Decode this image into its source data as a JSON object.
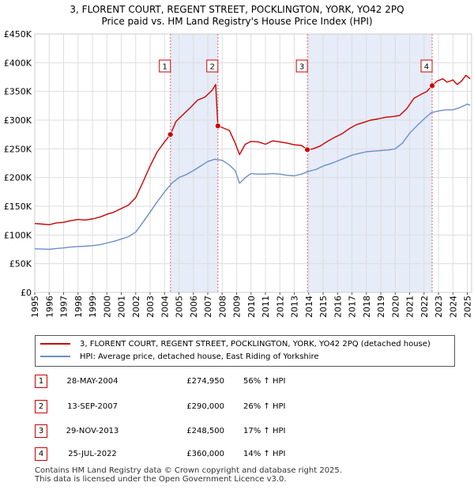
{
  "header": {
    "title": "3, FLORENT COURT, REGENT STREET, POCKLINGTON, YORK, YO42 2PQ",
    "subtitle": "Price paid vs. HM Land Registry's House Price Index (HPI)"
  },
  "chart_data": {
    "type": "line",
    "title": "3, FLORENT COURT, REGENT STREET, POCKLINGTON, YORK, YO42 2PQ",
    "subtitle": "Price paid vs. HM Land Registry's House Price Index (HPI)",
    "xlim": [
      1995,
      2025.3
    ],
    "ylim": [
      0,
      450000
    ],
    "y_ticks": [
      0,
      50000,
      100000,
      150000,
      200000,
      250000,
      300000,
      350000,
      400000,
      450000
    ],
    "y_tick_labels": [
      "£0",
      "£50K",
      "£100K",
      "£150K",
      "£200K",
      "£250K",
      "£300K",
      "£350K",
      "£400K",
      "£450K"
    ],
    "x_ticks": [
      1995,
      1996,
      1997,
      1998,
      1999,
      2000,
      2001,
      2002,
      2003,
      2004,
      2005,
      2006,
      2007,
      2008,
      2009,
      2010,
      2011,
      2012,
      2013,
      2014,
      2015,
      2016,
      2017,
      2018,
      2019,
      2020,
      2021,
      2022,
      2023,
      2024,
      2025
    ],
    "x_tick_labels": [
      "1995",
      "1996",
      "1997",
      "1998",
      "1999",
      "2000",
      "2001",
      "2002",
      "2003",
      "2004",
      "2005",
      "2006",
      "2007",
      "2008",
      "2009",
      "2010",
      "2011",
      "2012",
      "2013",
      "2014",
      "2015",
      "2016",
      "2017",
      "2018",
      "2019",
      "2020",
      "2021",
      "2022",
      "2023",
      "2024",
      "2025"
    ],
    "grid": true,
    "series": [
      {
        "name": "3, FLORENT COURT, REGENT STREET, POCKLINGTON, YORK, YO42 2PQ (detached house)",
        "color": "#cc0000",
        "x": [
          1995.0,
          1995.5,
          1996.0,
          1996.5,
          1997.0,
          1997.5,
          1998.0,
          1998.5,
          1999.0,
          1999.5,
          2000.0,
          2000.5,
          2001.0,
          2001.5,
          2002.0,
          2002.5,
          2003.0,
          2003.5,
          2004.0,
          2004.41,
          2004.8,
          2005.3,
          2005.8,
          2006.3,
          2006.8,
          2007.3,
          2007.55,
          2007.7,
          2008.0,
          2008.5,
          2008.9,
          2009.2,
          2009.6,
          2010.0,
          2010.5,
          2011.0,
          2011.5,
          2012.0,
          2012.5,
          2013.0,
          2013.5,
          2013.91,
          2014.3,
          2014.8,
          2015.3,
          2015.8,
          2016.3,
          2016.8,
          2017.3,
          2017.8,
          2018.3,
          2018.8,
          2019.3,
          2019.8,
          2020.3,
          2020.8,
          2021.3,
          2021.8,
          2022.2,
          2022.56,
          2022.9,
          2023.3,
          2023.6,
          2024.0,
          2024.3,
          2024.6,
          2024.9,
          2025.2
        ],
        "values": [
          120000,
          119000,
          118000,
          121000,
          122000,
          125000,
          127000,
          126000,
          128000,
          131000,
          136000,
          140000,
          146000,
          152000,
          165000,
          192000,
          220000,
          245000,
          262000,
          274950,
          298000,
          310000,
          322000,
          335000,
          340000,
          352000,
          362000,
          290000,
          287000,
          282000,
          260000,
          240000,
          258000,
          263000,
          262000,
          258000,
          264000,
          262000,
          260000,
          257000,
          256000,
          248500,
          250000,
          255000,
          263000,
          270000,
          276000,
          285000,
          292000,
          296000,
          300000,
          302000,
          305000,
          306000,
          308000,
          320000,
          338000,
          345000,
          350000,
          360000,
          368000,
          372000,
          366000,
          370000,
          362000,
          368000,
          378000,
          372000
        ]
      },
      {
        "name": "HPI: Average price, detached house, East Riding of Yorkshire",
        "color": "#6b8fc9",
        "x": [
          1995.0,
          1995.5,
          1996.0,
          1996.5,
          1997.0,
          1997.5,
          1998.0,
          1998.5,
          1999.0,
          1999.5,
          2000.0,
          2000.5,
          2001.0,
          2001.5,
          2002.0,
          2002.5,
          2003.0,
          2003.5,
          2004.0,
          2004.5,
          2005.0,
          2005.5,
          2006.0,
          2006.5,
          2007.0,
          2007.5,
          2008.0,
          2008.5,
          2008.9,
          2009.2,
          2009.6,
          2010.0,
          2010.5,
          2011.0,
          2011.5,
          2012.0,
          2012.5,
          2013.0,
          2013.5,
          2014.0,
          2014.5,
          2015.0,
          2015.5,
          2016.0,
          2016.5,
          2017.0,
          2017.5,
          2018.0,
          2018.5,
          2019.0,
          2019.5,
          2020.0,
          2020.5,
          2021.0,
          2021.5,
          2022.0,
          2022.5,
          2023.0,
          2023.5,
          2024.0,
          2024.5,
          2025.0,
          2025.2
        ],
        "values": [
          76000,
          75500,
          75000,
          76500,
          77500,
          79000,
          80000,
          80500,
          81500,
          83000,
          86000,
          89000,
          93000,
          97000,
          105000,
          122000,
          140000,
          158000,
          175000,
          190000,
          200000,
          205000,
          212000,
          220000,
          228000,
          232000,
          230000,
          222000,
          212000,
          190000,
          200000,
          207000,
          206000,
          206000,
          207000,
          206000,
          204000,
          203000,
          206000,
          211000,
          214000,
          220000,
          224000,
          229000,
          234000,
          239000,
          242000,
          245000,
          246000,
          247000,
          248000,
          250000,
          260000,
          277000,
          290000,
          302000,
          313000,
          316000,
          318000,
          318000,
          322000,
          328000,
          326000
        ]
      }
    ],
    "sales": [
      {
        "label": "1",
        "x": 2004.41,
        "price": 274950
      },
      {
        "label": "2",
        "x": 2007.7,
        "price": 290000
      },
      {
        "label": "3",
        "x": 2013.91,
        "price": 248500
      },
      {
        "label": "4",
        "x": 2022.56,
        "price": 360000
      }
    ]
  },
  "legend": {
    "items": [
      {
        "label": "3, FLORENT COURT, REGENT STREET, POCKLINGTON, YORK, YO42 2PQ (detached house)",
        "color": "#cc0000"
      },
      {
        "label": "HPI: Average price, detached house, East Riding of Yorkshire",
        "color": "#6b8fc9"
      }
    ]
  },
  "transactions": [
    {
      "num": "1",
      "date": "28-MAY-2004",
      "price": "£274,950",
      "hpi": "56% ↑ HPI"
    },
    {
      "num": "2",
      "date": "13-SEP-2007",
      "price": "£290,000",
      "hpi": "26% ↑ HPI"
    },
    {
      "num": "3",
      "date": "29-NOV-2013",
      "price": "£248,500",
      "hpi": "17% ↑ HPI"
    },
    {
      "num": "4",
      "date": "25-JUL-2022",
      "price": "£360,000",
      "hpi": "14% ↑ HPI"
    }
  ],
  "footer": {
    "line1": "Contains HM Land Registry data © Crown copyright and database right 2025.",
    "line2": "This data is licensed under the Open Government Licence v3.0."
  }
}
